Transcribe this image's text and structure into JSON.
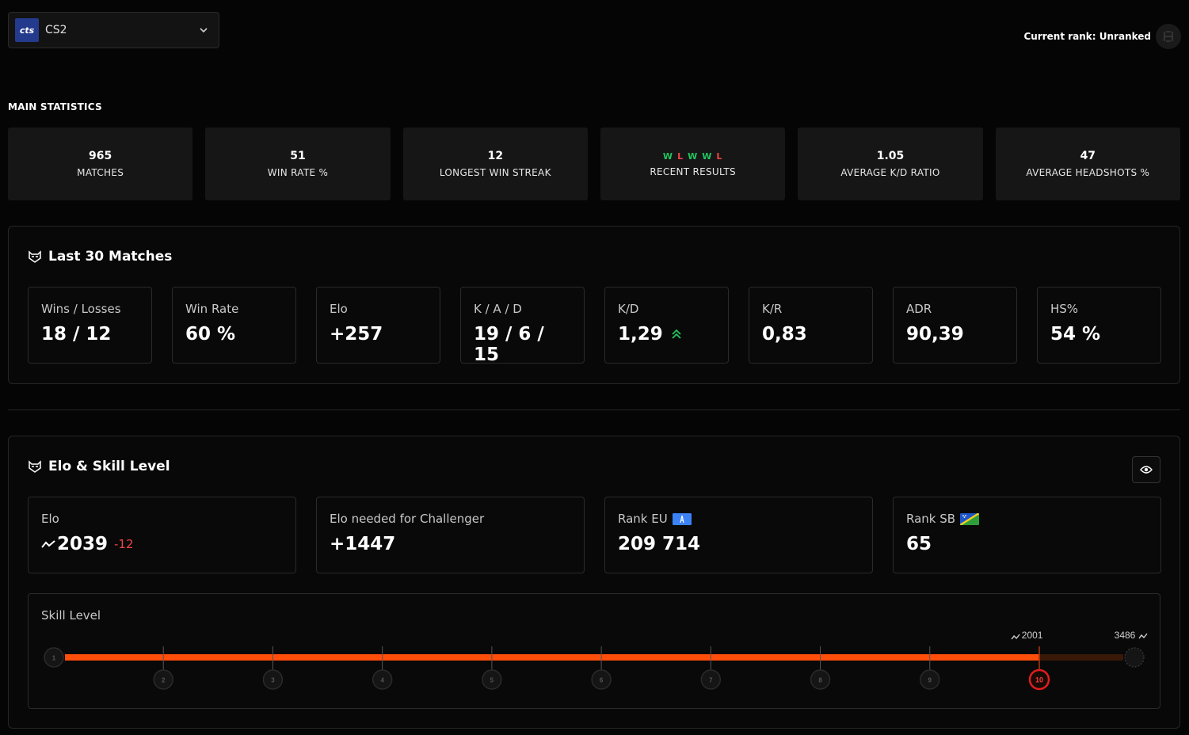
{
  "game_selector": {
    "logo_text": "cts",
    "name": "CS2"
  },
  "rank": {
    "label": "Current rank: Unranked"
  },
  "main_statistics": {
    "heading": "MAIN STATISTICS",
    "cards": [
      {
        "value": "965",
        "label": "MATCHES"
      },
      {
        "value": "51",
        "label": "WIN RATE %"
      },
      {
        "value": "12",
        "label": "LONGEST WIN STREAK"
      },
      {
        "results": [
          "W",
          "L",
          "W",
          "W",
          "L"
        ],
        "label": "RECENT RESULTS"
      },
      {
        "value": "1.05",
        "label": "AVERAGE K/D RATIO"
      },
      {
        "value": "47",
        "label": "AVERAGE HEADSHOTS %"
      }
    ]
  },
  "last30": {
    "title": "Last 30 Matches",
    "stats": [
      {
        "label": "Wins / Losses",
        "value": "18 / 12"
      },
      {
        "label": "Win Rate",
        "value": "60 %"
      },
      {
        "label": "Elo",
        "value": "+257"
      },
      {
        "label": "K / A / D",
        "value": "19 / 6 / 15"
      },
      {
        "label": "K/D",
        "value": "1,29"
      },
      {
        "label": "K/R",
        "value": "0,83"
      },
      {
        "label": "ADR",
        "value": "90,39"
      },
      {
        "label": "HS%",
        "value": "54 %"
      }
    ]
  },
  "elo_skill": {
    "title": "Elo & Skill Level",
    "elo": {
      "label": "Elo",
      "value": "2039",
      "delta": "-12"
    },
    "challenger": {
      "label": "Elo needed for Challenger",
      "value": "+1447"
    },
    "rank_eu": {
      "label": "Rank EU",
      "value": "209 714"
    },
    "rank_sb": {
      "label": "Rank SB",
      "value": "65"
    },
    "skill": {
      "label": "Skill Level",
      "current_level": 10,
      "levels": [
        "1",
        "2",
        "3",
        "4",
        "5",
        "6",
        "7",
        "8",
        "9",
        "10"
      ],
      "current_elo_label": "2001",
      "max_elo_label": "3486",
      "fill_fraction": 0.92,
      "accent": "#ff4d0a"
    }
  }
}
